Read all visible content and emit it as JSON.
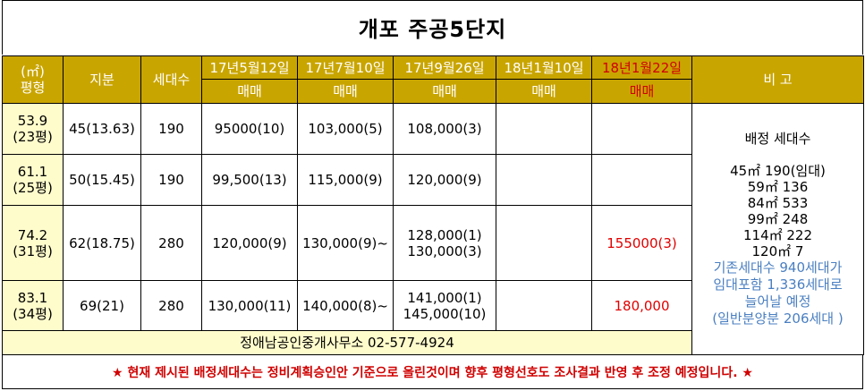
{
  "title": "개포 주공5단지",
  "header": {
    "area_unit": "(㎡)",
    "pyeong": "평형",
    "share": "지분",
    "households": "세대수",
    "dates": [
      "17년5월12일",
      "17년7월10일",
      "17년9월26일",
      "18년1월10일",
      "18년1월22일"
    ],
    "trade": "매매",
    "remarks": "비 고"
  },
  "rows": [
    {
      "area": "53.9",
      "pyeong": "(23평)",
      "share": "45(13.63)",
      "households": "190",
      "p1": "95000(10)",
      "p2": "103,000(5)",
      "p3": [
        "108,000(3)"
      ],
      "p4": "",
      "p5": ""
    },
    {
      "area": "61.1",
      "pyeong": "(25평)",
      "share": "50(15.45)",
      "households": "190",
      "p1": "99,500(13)",
      "p2": "115,000(9)",
      "p3": [
        "120,000(9)"
      ],
      "p4": "",
      "p5": ""
    },
    {
      "area": "74.2",
      "pyeong": "(31평)",
      "share": "62(18.75)",
      "households": "280",
      "p1": "120,000(9)",
      "p2": "130,000(9)~",
      "p3": [
        "128,000(1)",
        "130,000(3)"
      ],
      "p4": "",
      "p5": "155000(3)"
    },
    {
      "area": "83.1",
      "pyeong": "(34평)",
      "share": "69(21)",
      "households": "280",
      "p1": "130,000(11)",
      "p2": "140,000(8)~",
      "p3": [
        "141,000(1)",
        "145,000(10)"
      ],
      "p4": "",
      "p5": "180,000"
    }
  ],
  "remarks": {
    "heading": "배정 세대수",
    "lines": [
      "45㎡ 190(임대)",
      "59㎡ 136",
      "84㎡ 533",
      "99㎡ 248",
      "114㎡ 222",
      "120㎡ 7"
    ],
    "blue_lines": [
      "기존세대수 940세대가",
      "임대포함 1,336세대로",
      "늘어날 예정",
      "(일반분양분 206세대 )"
    ]
  },
  "office": "정애남공인중개사무소 02-577-4924",
  "notice": "★ 현재 제시된 배정세대수는 정비계획승인안 기준으로 올린것이며 향후 평형선호도 조사결과 반영 후 조정 예정입니다. ★",
  "colors": {
    "header_bg": "#c9a500",
    "area_bg": "#fffccc",
    "highlight_red": "#e00000",
    "note_blue": "#4a7fc1"
  }
}
